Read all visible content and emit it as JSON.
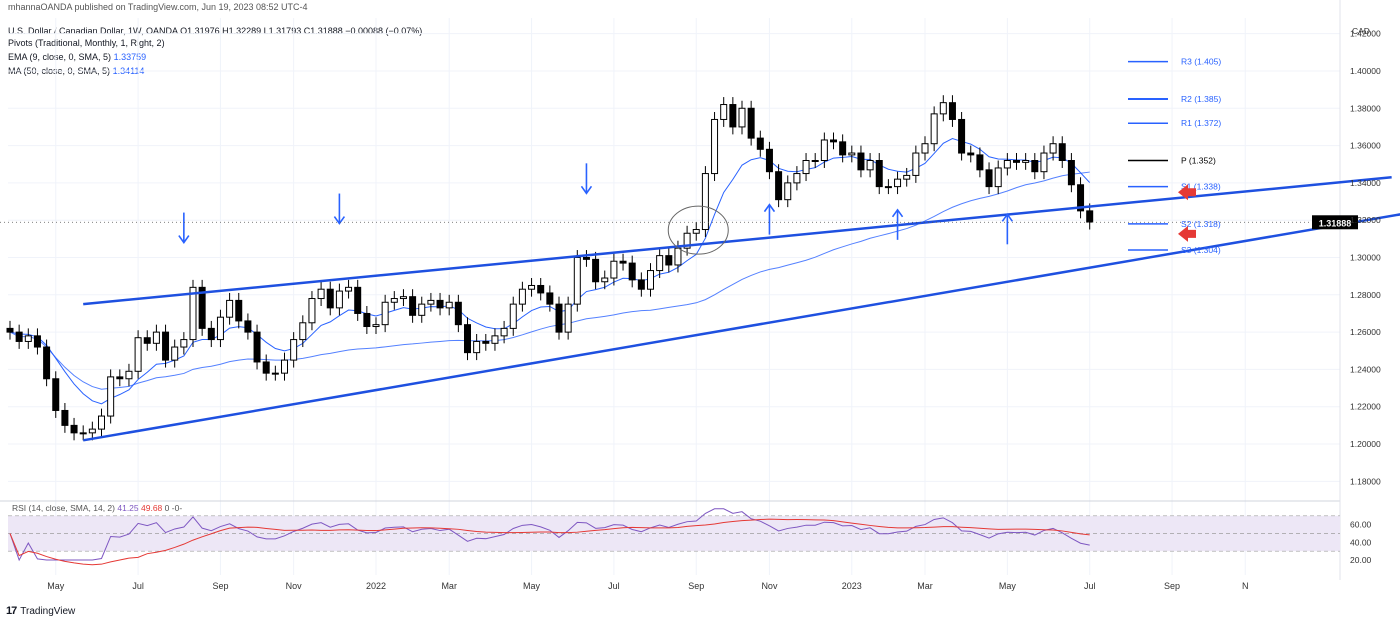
{
  "header": {
    "published": "mhannaOANDA published on TradingView.com, Jun 19, 2023 08:52 UTC-4",
    "symbol_line": "U.S. Dollar / Canadian Dollar, 1W, OANDA",
    "ohlc": "O1.31976 H1.32289 L1.31793 C1.31888 −0.00088 (−0.07%)",
    "pivots": "Pivots (Traditional, Monthly, 1, Right, 2)",
    "ema_label": "EMA (9, close, 0, SMA, 5)",
    "ema_value": "1.33759",
    "ma_label": "MA (50, close, 0, SMA, 5)",
    "ma_value": "1.34114"
  },
  "price_axis": {
    "currency": "CAD",
    "current_price": "1.31888",
    "current_price_num": 1.31888
  },
  "rsi": {
    "label": "RSI (14, close, SMA, 14, 2)",
    "value": "41.25",
    "ma_value": "49.68",
    "extra": "0 -0-",
    "ticks": [
      "60.00",
      "40.00",
      "20.00"
    ]
  },
  "footer": {
    "brand": "TradingView"
  },
  "colors": {
    "bull": "#ffffff",
    "bear": "#000000",
    "ema": "#2962ff",
    "ma": "#2962ff",
    "trendline": "#1e50e0",
    "rsi": "#7e57c2",
    "rsi_ma": "#e53935",
    "rsi_band": "#ede7f6",
    "arrow": "#2962ff",
    "red_arrow": "#e53935"
  },
  "chart_data": {
    "type": "candlestick",
    "title": "U.S. Dollar / Canadian Dollar, 1W, OANDA",
    "ylabel": "CAD",
    "ylim": [
      1.17,
      1.43
    ],
    "yticks": [
      1.18,
      1.2,
      1.22,
      1.24,
      1.26,
      1.28,
      1.3,
      1.32,
      1.34,
      1.36,
      1.38,
      1.4,
      1.42
    ],
    "x_labels": [
      {
        "label": "May",
        "week": 5
      },
      {
        "label": "Jul",
        "week": 14
      },
      {
        "label": "Sep",
        "week": 23
      },
      {
        "label": "Nov",
        "week": 31
      },
      {
        "label": "2022",
        "week": 40
      },
      {
        "label": "Mar",
        "week": 48
      },
      {
        "label": "May",
        "week": 57
      },
      {
        "label": "Jul",
        "week": 66
      },
      {
        "label": "Sep",
        "week": 75
      },
      {
        "label": "Nov",
        "week": 83
      },
      {
        "label": "2023",
        "week": 92
      },
      {
        "label": "Mar",
        "week": 100
      },
      {
        "label": "May",
        "week": 109
      },
      {
        "label": "Jul",
        "week": 118
      },
      {
        "label": "Sep",
        "week": 127
      },
      {
        "label": "N",
        "week": 135
      }
    ],
    "closes": [
      1.26,
      1.255,
      1.258,
      1.252,
      1.235,
      1.218,
      1.21,
      1.206,
      1.206,
      1.208,
      1.215,
      1.236,
      1.235,
      1.239,
      1.257,
      1.254,
      1.26,
      1.245,
      1.252,
      1.256,
      1.284,
      1.262,
      1.256,
      1.268,
      1.277,
      1.266,
      1.26,
      1.244,
      1.238,
      1.238,
      1.245,
      1.256,
      1.265,
      1.278,
      1.283,
      1.273,
      1.282,
      1.284,
      1.27,
      1.263,
      1.264,
      1.276,
      1.278,
      1.279,
      1.269,
      1.275,
      1.277,
      1.273,
      1.276,
      1.264,
      1.249,
      1.255,
      1.254,
      1.258,
      1.262,
      1.275,
      1.283,
      1.285,
      1.281,
      1.275,
      1.26,
      1.275,
      1.3,
      1.299,
      1.287,
      1.289,
      1.298,
      1.297,
      1.288,
      1.283,
      1.293,
      1.301,
      1.296,
      1.305,
      1.313,
      1.315,
      1.345,
      1.374,
      1.382,
      1.37,
      1.38,
      1.364,
      1.358,
      1.346,
      1.331,
      1.34,
      1.345,
      1.352,
      1.352,
      1.363,
      1.362,
      1.355,
      1.356,
      1.347,
      1.352,
      1.338,
      1.338,
      1.342,
      1.344,
      1.356,
      1.361,
      1.377,
      1.383,
      1.374,
      1.356,
      1.355,
      1.347,
      1.338,
      1.348,
      1.352,
      1.351,
      1.352,
      1.346,
      1.356,
      1.361,
      1.352,
      1.339,
      1.325,
      1.319
    ],
    "trendlines": [
      {
        "name": "upper",
        "from": {
          "week": 8,
          "price": 1.275
        },
        "to": {
          "week": 151,
          "price": 1.343
        }
      },
      {
        "name": "lower",
        "from": {
          "week": 8,
          "price": 1.202
        },
        "to": {
          "week": 153,
          "price": 1.324
        }
      }
    ],
    "pivots": [
      {
        "label": "R3 (1.405)",
        "price": 1.405
      },
      {
        "label": "R2 (1.385)",
        "price": 1.385
      },
      {
        "label": "R1 (1.372)",
        "price": 1.372
      },
      {
        "label": "P (1.352)",
        "price": 1.352
      },
      {
        "label": "S1 (1.338)",
        "price": 1.338
      },
      {
        "label": "S2 (1.318)",
        "price": 1.318
      },
      {
        "label": "S3 (1.304)",
        "price": 1.304
      }
    ],
    "down_arrows": [
      {
        "week": 19
      },
      {
        "week": 36
      },
      {
        "week": 63
      }
    ],
    "up_arrows": [
      {
        "week": 83
      },
      {
        "week": 97
      },
      {
        "week": 109
      }
    ],
    "red_arrows": [
      {
        "price": 1.335
      },
      {
        "price": 1.318
      }
    ],
    "highlight_circle": {
      "week": 75,
      "price": 1.312
    }
  }
}
